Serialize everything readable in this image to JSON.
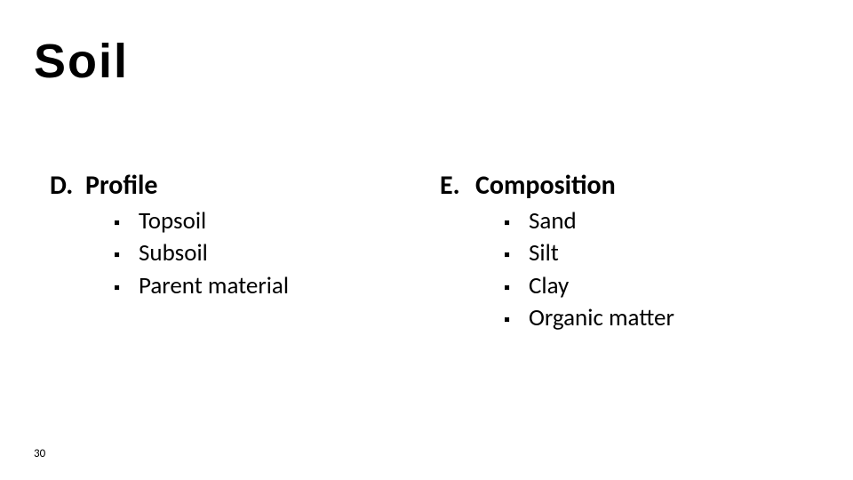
{
  "title": "Soil",
  "page_number": "30",
  "colors": {
    "background": "#ffffff",
    "text": "#000000"
  },
  "typography": {
    "title_font": "Impact",
    "title_size_pt": 40,
    "body_font": "Calibri",
    "heading_size_pt": 22,
    "bullet_size_pt": 20,
    "page_num_size_pt": 10
  },
  "left": {
    "letter": "D.",
    "heading": "Profile",
    "items": [
      "Topsoil",
      "Subsoil",
      "Parent material"
    ]
  },
  "right": {
    "letter": "E.",
    "heading": "Composition",
    "items": [
      "Sand",
      "Silt",
      "Clay",
      "Organic matter"
    ]
  },
  "bullet_glyph": "▪"
}
